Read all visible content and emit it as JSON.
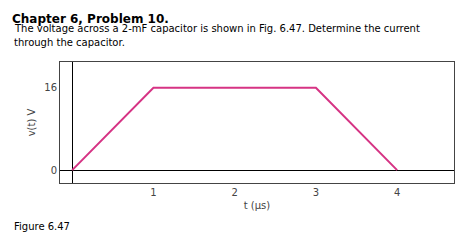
{
  "chart_data": {
    "type": "line",
    "title": "Chapter 6, Problem 10.",
    "subtitle": [
      "The voltage across a 2-mF capacitor is shown in Fig. 6.47. Determine the current",
      "through the capacitor."
    ],
    "annotations": [
      "Figure 6.47"
    ],
    "xlabel": "t (μs)",
    "ylabel": "v(t) V",
    "x": [
      0,
      1,
      3,
      4
    ],
    "values": [
      0,
      16,
      16,
      0
    ],
    "color": "#d63384",
    "xlim": [
      -0.15,
      4.7
    ],
    "ylim": [
      -2.5,
      21
    ],
    "xticks": [
      1,
      2,
      3,
      4
    ],
    "yticks": [
      0,
      16
    ],
    "grid": false
  }
}
